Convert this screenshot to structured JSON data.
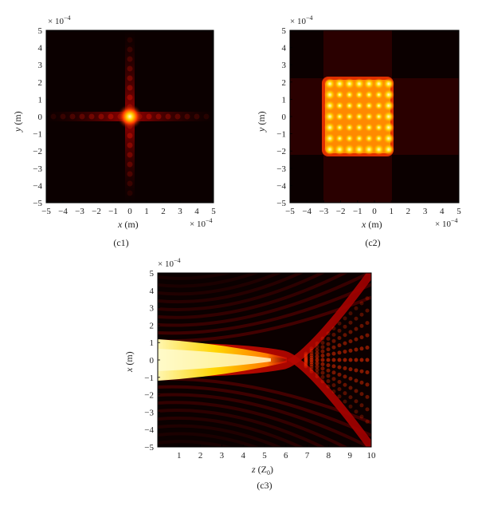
{
  "chart_data": [
    {
      "type": "heatmap",
      "panel_label": "(c1)",
      "xlabel_var": "x",
      "xlabel_unit": " (m)",
      "ylabel_var": "y",
      "ylabel_unit": " (m)",
      "exponent_base": "× 10",
      "exponent_power": "−4",
      "xticks": [
        "−5",
        "−4",
        "−3",
        "−2",
        "−1",
        "0",
        "1",
        "2",
        "3",
        "4",
        "5"
      ],
      "yticks": [
        "5",
        "4",
        "3",
        "2",
        "1",
        "0",
        "−1",
        "−2",
        "−3",
        "−4",
        "−5"
      ],
      "xlim": [
        -5,
        5
      ],
      "ylim": [
        -5,
        5
      ],
      "colormap": [
        "#000000",
        "#3a0000",
        "#8b0000",
        "#e01000",
        "#ff7a00",
        "#ffd400",
        "#fffbd0"
      ],
      "description": "single bright spot at origin with faint cross-shaped side lobes"
    },
    {
      "type": "heatmap",
      "panel_label": "(c2)",
      "xlabel_var": "x",
      "xlabel_unit": " (m)",
      "ylabel_var": "y",
      "ylabel_unit": " (m)",
      "exponent_base": "× 10",
      "exponent_power": "−4",
      "xticks": [
        "−5",
        "−4",
        "−3",
        "−2",
        "−1",
        "0",
        "1",
        "2",
        "3",
        "4",
        "5"
      ],
      "yticks": [
        "5",
        "4",
        "3",
        "2",
        "1",
        "0",
        "−1",
        "−2",
        "−3",
        "−4",
        "−5"
      ],
      "xlim": [
        -5,
        5
      ],
      "ylim": [
        -5,
        5
      ],
      "colormap": [
        "#000000",
        "#3a0000",
        "#8b0000",
        "#e01000",
        "#ff7a00",
        "#ffd400",
        "#fffbd0"
      ],
      "description": "bright square region from -2 to 2 with 7x7 grid of intensity maxima"
    },
    {
      "type": "heatmap",
      "panel_label": "(c3)",
      "xlabel_var": "z",
      "xlabel_unit": " (Z",
      "xlabel_sub": "0",
      "xlabel_close": ")",
      "ylabel_var": "x",
      "ylabel_unit": " (m)",
      "exponent_base": "× 10",
      "exponent_power": "−4",
      "xticks": [
        "1",
        "2",
        "3",
        "4",
        "5",
        "6",
        "7",
        "8",
        "9",
        "10"
      ],
      "yticks": [
        "5",
        "4",
        "3",
        "2",
        "1",
        "0",
        "−1",
        "−2",
        "−3",
        "−4",
        "−5"
      ],
      "xlim": [
        0,
        10
      ],
      "ylim": [
        -5,
        5
      ],
      "colormap": [
        "#000000",
        "#3a0000",
        "#8b0000",
        "#e01000",
        "#ff7a00",
        "#ffd400",
        "#fffbd0"
      ],
      "description": "propagation: bright beam along x=0 up to z~6, splits into two branches crossing near z~7.5"
    }
  ]
}
